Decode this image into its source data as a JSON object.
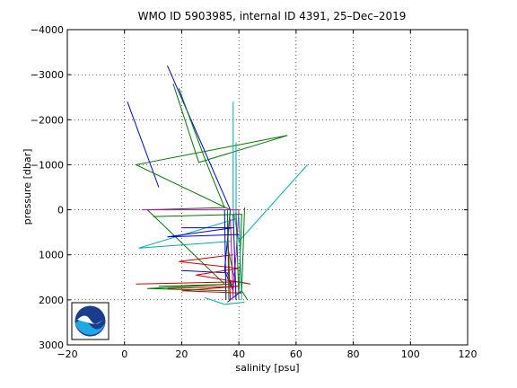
{
  "chart_data": {
    "type": "line",
    "title": "WMO ID 5903985, internal ID 4391, 25–Dec–2019",
    "xlabel": "salinity [psu]",
    "ylabel": "pressure [dbar]",
    "xlim": [
      -20,
      120
    ],
    "ylim": [
      -4000,
      3000
    ],
    "y_reversed": true,
    "grid": true,
    "grid_style": "dotted",
    "x_ticks": [
      -20,
      0,
      20,
      40,
      60,
      80,
      100,
      120
    ],
    "x_tick_labels": [
      "−20",
      "0",
      "20",
      "40",
      "60",
      "80",
      "100",
      "120"
    ],
    "y_ticks": [
      -4000,
      -3000,
      -2000,
      -1000,
      0,
      1000,
      2000,
      3000
    ],
    "y_tick_labels": [
      "−4000",
      "−3000",
      "−2000",
      "−1000",
      "0",
      "1000",
      "2000",
      "3000"
    ],
    "logo": "NOAA",
    "logo_position": "bottom-left",
    "series": [
      {
        "color": "#0000cc",
        "points": [
          [
            1,
            -2400
          ],
          [
            12,
            -500
          ]
        ]
      },
      {
        "color": "#0000cc",
        "points": [
          [
            15,
            -3200
          ],
          [
            37,
            0
          ],
          [
            35,
            1350
          ],
          [
            38,
            1800
          ],
          [
            36,
            1400
          ],
          [
            20,
            1350
          ]
        ]
      },
      {
        "color": "#007700",
        "points": [
          [
            17,
            -2800
          ],
          [
            26,
            -1050
          ],
          [
            57,
            -1650
          ],
          [
            4,
            -1000
          ],
          [
            37,
            0
          ],
          [
            36,
            800
          ],
          [
            39,
            1700
          ]
        ]
      },
      {
        "color": "#007700",
        "points": [
          [
            19,
            -2700
          ],
          [
            28,
            -1150
          ],
          [
            35,
            -50
          ],
          [
            8,
            0
          ],
          [
            35,
            1650
          ]
        ]
      },
      {
        "color": "#00aaaa",
        "points": [
          [
            38,
            -2400
          ],
          [
            38,
            0
          ],
          [
            40,
            700
          ],
          [
            64,
            -1000
          ]
        ]
      },
      {
        "color": "#00aaaa",
        "points": [
          [
            39,
            -1500
          ],
          [
            39,
            200
          ],
          [
            5,
            850
          ],
          [
            37,
            700
          ]
        ]
      },
      {
        "color": "#cc00cc",
        "points": [
          [
            6,
            0
          ],
          [
            40,
            0
          ],
          [
            39,
            1000
          ],
          [
            38,
            1800
          ]
        ]
      },
      {
        "color": "#cc0000",
        "points": [
          [
            4,
            1650
          ],
          [
            40,
            1600
          ],
          [
            44,
            1650
          ],
          [
            25,
            1450
          ],
          [
            40,
            1300
          ],
          [
            19,
            1150
          ],
          [
            38,
            1000
          ]
        ]
      },
      {
        "color": "#007700",
        "points": [
          [
            10,
            150
          ],
          [
            41,
            100
          ],
          [
            40,
            1850
          ]
        ]
      },
      {
        "color": "#0000cc",
        "points": [
          [
            41,
            1800
          ],
          [
            36,
            2050
          ]
        ]
      },
      {
        "color": "#00aaaa",
        "points": [
          [
            28,
            1950
          ],
          [
            35,
            2100
          ],
          [
            42,
            2050
          ]
        ]
      },
      {
        "color": "#007700",
        "points": [
          [
            42,
            -50
          ],
          [
            41,
            1800
          ],
          [
            43,
            2000
          ]
        ]
      },
      {
        "color": "#cc0000",
        "points": [
          [
            36,
            300
          ],
          [
            37,
            2000
          ]
        ]
      },
      {
        "color": "#cc00cc",
        "points": [
          [
            37,
            200
          ],
          [
            38,
            1950
          ]
        ]
      },
      {
        "color": "#0000cc",
        "points": [
          [
            38,
            100
          ],
          [
            39,
            2000
          ]
        ]
      },
      {
        "color": "#007700",
        "points": [
          [
            39,
            50
          ],
          [
            40,
            2000
          ]
        ]
      },
      {
        "color": "#00aaaa",
        "points": [
          [
            40,
            150
          ],
          [
            41,
            2000
          ]
        ]
      },
      {
        "color": "#0000cc",
        "points": [
          [
            35,
            0
          ],
          [
            35.5,
            2000
          ]
        ]
      },
      {
        "color": "#007700",
        "points": [
          [
            36,
            0
          ],
          [
            36.5,
            2000
          ]
        ]
      },
      {
        "color": "#cc0000",
        "points": [
          [
            15,
            1750
          ],
          [
            40,
            1700
          ],
          [
            20,
            1800
          ],
          [
            41,
            1850
          ]
        ]
      },
      {
        "color": "#0000cc",
        "points": [
          [
            20,
            400
          ],
          [
            38,
            400
          ],
          [
            15,
            600
          ],
          [
            40,
            550
          ]
        ]
      },
      {
        "color": "#007700",
        "points": [
          [
            12,
            1700
          ],
          [
            38,
            1650
          ],
          [
            8,
            1750
          ],
          [
            36,
            1800
          ]
        ]
      }
    ]
  }
}
